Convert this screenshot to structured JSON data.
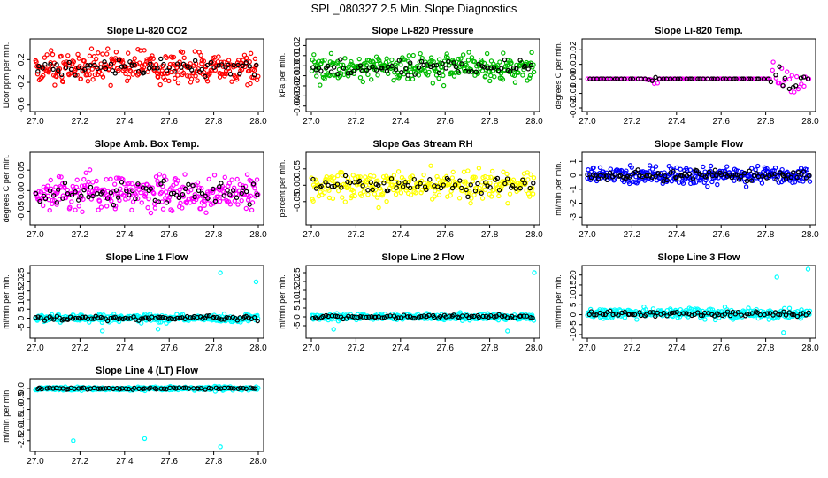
{
  "page_title": "SPL_080327  2.5 Min. Slope Diagnostics",
  "chart_data": [
    {
      "type": "scatter",
      "title": "Slope Li-820 CO2",
      "ylabel": "Licor ppm per min.",
      "xlim": [
        27.0,
        28.0
      ],
      "ylim": [
        -0.65,
        0.5
      ],
      "xticks": [
        27.0,
        27.2,
        27.4,
        27.6,
        27.8,
        28.0
      ],
      "yticks": [
        -0.6,
        -0.2,
        0.2
      ],
      "ytick_labels": [
        "-0.6",
        "-0.2",
        "0.2"
      ],
      "color": "#ff0000",
      "accent_color": "#000000",
      "center": 0.05,
      "spread": 0.28,
      "points": 300,
      "accent_points": 70
    },
    {
      "type": "scatter",
      "title": "Slope Li-820 Pressure",
      "ylabel": "kPa per min.",
      "xlim": [
        27.0,
        28.0
      ],
      "ylim": [
        -0.042,
        0.023
      ],
      "xticks": [
        27.0,
        27.2,
        27.4,
        27.6,
        27.8,
        28.0
      ],
      "yticks": [
        -0.04,
        -0.03,
        -0.02,
        -0.01,
        0.0,
        0.01,
        0.02
      ],
      "ytick_labels": [
        "-0.04",
        "-0.03",
        "-0.02",
        "-0.01",
        "0.00",
        "0.01",
        "0.02"
      ],
      "color": "#00bb00",
      "accent_color": "#000000",
      "center": -0.002,
      "spread": 0.013,
      "points": 300,
      "accent_points": 70
    },
    {
      "type": "scatter",
      "title": "Slope Li-820 Temp.",
      "ylabel": "degrees C per min.",
      "xlim": [
        27.0,
        28.0
      ],
      "ylim": [
        -0.02,
        0.025
      ],
      "xticks": [
        27.0,
        27.2,
        27.4,
        27.6,
        27.8,
        28.0
      ],
      "yticks": [
        -0.02,
        -0.01,
        0.0,
        0.01,
        0.02
      ],
      "ytick_labels": [
        "-0.02",
        "-0.01",
        "0.00",
        "0.01",
        "0.02"
      ],
      "color": "#ff00ff",
      "accent_color": "#000000",
      "center": 0.0,
      "spread": 0.0,
      "points": 120,
      "accent_points": 60,
      "noisy_ranges": [
        [
          27.26,
          27.32,
          0.004
        ],
        [
          27.82,
          27.98,
          0.012
        ]
      ]
    },
    {
      "type": "scatter",
      "title": "Slope Amb. Box Temp.",
      "ylabel": "degrees C per min.",
      "xlim": [
        27.0,
        28.0
      ],
      "ylim": [
        -0.075,
        0.085
      ],
      "xticks": [
        27.0,
        27.2,
        27.4,
        27.6,
        27.8,
        28.0
      ],
      "yticks": [
        -0.05,
        0.0,
        0.05
      ],
      "ytick_labels": [
        "-0.05",
        "0.00",
        "0.05"
      ],
      "color": "#ff00ff",
      "accent_color": "#000000",
      "center": -0.005,
      "spread": 0.045,
      "points": 300,
      "accent_points": 70
    },
    {
      "type": "scatter",
      "title": "Slope Gas Stream RH",
      "ylabel": "percent per min.",
      "xlim": [
        27.0,
        28.0
      ],
      "ylim": [
        -0.11,
        0.09
      ],
      "xticks": [
        27.0,
        27.2,
        27.4,
        27.6,
        27.8,
        28.0
      ],
      "yticks": [
        -0.05,
        0.0,
        0.05
      ],
      "ytick_labels": [
        "-0.05",
        "0.00",
        "0.05"
      ],
      "color": "#ffff00",
      "accent_color": "#000000",
      "center": 0.0,
      "spread": 0.045,
      "points": 300,
      "accent_points": 70
    },
    {
      "type": "scatter",
      "title": "Slope Sample Flow",
      "ylabel": "ml/min per min.",
      "xlim": [
        27.0,
        28.0
      ],
      "ylim": [
        -3.3,
        1.4
      ],
      "xticks": [
        27.0,
        27.2,
        27.4,
        27.6,
        27.8,
        28.0
      ],
      "yticks": [
        -3,
        -2,
        -1,
        0,
        1
      ],
      "ytick_labels": [
        "-3",
        "-2",
        "-1",
        "0",
        "1"
      ],
      "color": "#0000ff",
      "accent_color": "#000000",
      "center": 0.0,
      "spread": 0.6,
      "points": 300,
      "accent_points": 90
    },
    {
      "type": "scatter",
      "title": "Slope Line 1 Flow",
      "ylabel": "ml/min per min.",
      "xlim": [
        27.0,
        28.0
      ],
      "ylim": [
        -9,
        27
      ],
      "xticks": [
        27.0,
        27.2,
        27.4,
        27.6,
        27.8,
        28.0
      ],
      "yticks": [
        -5,
        0,
        5,
        10,
        15,
        20,
        25
      ],
      "ytick_labels": [
        "-5",
        "0",
        "5",
        "10",
        "15",
        "20",
        "25"
      ],
      "color": "#00ffff",
      "accent_color": "#000000",
      "center": 0.0,
      "spread": 2.0,
      "points": 300,
      "accent_points": 90,
      "outliers": [
        [
          27.83,
          25
        ],
        [
          27.99,
          20
        ],
        [
          27.3,
          -7
        ],
        [
          27.55,
          -6
        ]
      ]
    },
    {
      "type": "scatter",
      "title": "Slope Line 2 Flow",
      "ylabel": "ml/min per min.",
      "xlim": [
        27.0,
        28.0
      ],
      "ylim": [
        -10,
        27
      ],
      "xticks": [
        27.0,
        27.2,
        27.4,
        27.6,
        27.8,
        28.0
      ],
      "yticks": [
        -5,
        0,
        5,
        10,
        15,
        20,
        25
      ],
      "ytick_labels": [
        "-5",
        "0",
        "5",
        "10",
        "15",
        "20",
        "25"
      ],
      "color": "#00ffff",
      "accent_color": "#000000",
      "center": 0.0,
      "spread": 1.8,
      "points": 300,
      "accent_points": 80,
      "outliers": [
        [
          28.0,
          25
        ],
        [
          27.88,
          -8
        ],
        [
          27.1,
          -7
        ]
      ]
    },
    {
      "type": "scatter",
      "title": "Slope Line 3 Flow",
      "ylabel": "ml/min per min.",
      "xlim": [
        27.0,
        28.0
      ],
      "ylim": [
        -10,
        23
      ],
      "xticks": [
        27.0,
        27.2,
        27.4,
        27.6,
        27.8,
        28.0
      ],
      "yticks": [
        -10,
        -5,
        0,
        5,
        10,
        15,
        20
      ],
      "ytick_labels": [
        "-10",
        "-5",
        "0",
        "5",
        "10",
        "15",
        "20"
      ],
      "color": "#00ffff",
      "accent_color": "#000000",
      "center": 0.5,
      "spread": 2.5,
      "points": 300,
      "accent_points": 80,
      "outliers": [
        [
          27.85,
          19
        ],
        [
          27.99,
          23
        ],
        [
          27.88,
          -9
        ]
      ]
    },
    {
      "type": "scatter",
      "title": "Slope Line 4 (LT) Flow",
      "ylabel": "ml/min per min.",
      "xlim": [
        27.0,
        28.0
      ],
      "ylim": [
        -2.85,
        0.3
      ],
      "xticks": [
        27.0,
        27.2,
        27.4,
        27.6,
        27.8,
        28.0
      ],
      "yticks": [
        -2.5,
        -2.0,
        -1.5,
        -1.0,
        -0.5,
        0.0
      ],
      "ytick_labels": [
        "-2.5",
        "-2.0",
        "-1.5",
        "-1.0",
        "-0.5",
        "0.0"
      ],
      "color": "#00ffff",
      "accent_color": "#000000",
      "center": 0.0,
      "spread": 0.08,
      "points": 300,
      "accent_points": 70,
      "outliers": [
        [
          27.17,
          -2.5
        ],
        [
          27.49,
          -2.4
        ],
        [
          27.83,
          -2.8
        ]
      ]
    }
  ]
}
